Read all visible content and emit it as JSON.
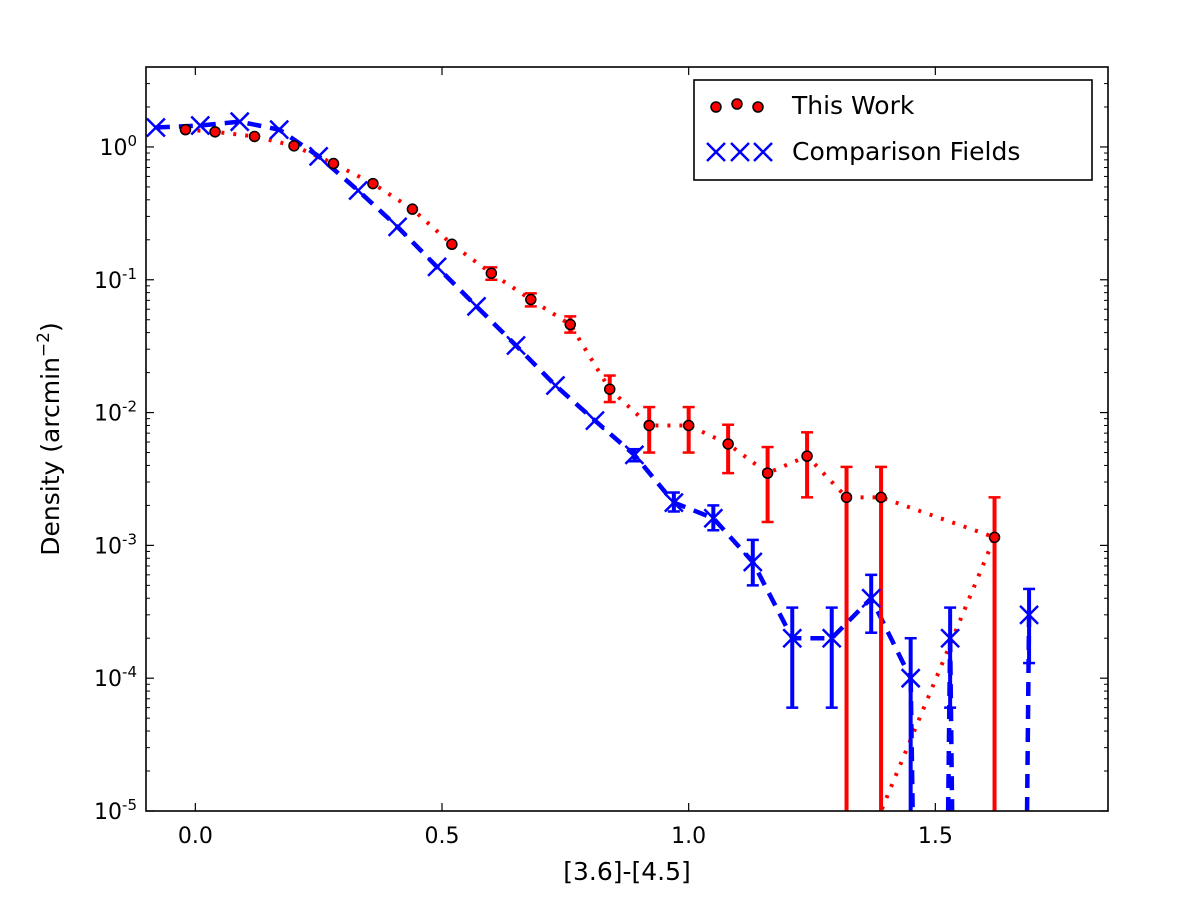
{
  "chart_data": {
    "type": "scatter",
    "xlabel": "[3.6]-[4.5]",
    "ylabel": "Density (arcmin",
    "ylabel_exp": "−2",
    "ylabel_close": ")",
    "xlim": [
      -0.1,
      1.85
    ],
    "ylim": [
      1e-05,
      4
    ],
    "yscale": "log",
    "x_ticks": [
      {
        "value": 0.0,
        "label": "0.0"
      },
      {
        "value": 0.5,
        "label": "0.5"
      },
      {
        "value": 1.0,
        "label": "1.0"
      },
      {
        "value": 1.5,
        "label": "1.5"
      }
    ],
    "y_ticks": [
      {
        "value": 1,
        "base": "10",
        "exp": "0"
      },
      {
        "value": 0.1,
        "base": "10",
        "exp": "-1"
      },
      {
        "value": 0.01,
        "base": "10",
        "exp": "-2"
      },
      {
        "value": 0.001,
        "base": "10",
        "exp": "-3"
      },
      {
        "value": 0.0001,
        "base": "10",
        "exp": "-4"
      },
      {
        "value": 1e-05,
        "base": "10",
        "exp": "-5"
      }
    ],
    "legend": {
      "position": "top-right"
    },
    "series": [
      {
        "name": "This Work",
        "color": "#ff0000",
        "marker": "dot",
        "linestyle": "dotted",
        "x": [
          -0.02,
          0.04,
          0.12,
          0.2,
          0.28,
          0.36,
          0.44,
          0.52,
          0.6,
          0.68,
          0.76,
          0.84,
          0.92,
          1.0,
          1.08,
          1.16,
          1.24,
          1.32,
          1.39,
          1.62
        ],
        "y": [
          1.35,
          1.3,
          1.2,
          1.02,
          0.75,
          0.53,
          0.34,
          0.185,
          0.112,
          0.071,
          0.046,
          0.015,
          0.008,
          0.008,
          0.0058,
          0.0035,
          0.0047,
          0.0023,
          0.0023,
          0.00115
        ],
        "err_low": [
          null,
          null,
          null,
          null,
          null,
          null,
          null,
          null,
          0.1,
          0.063,
          0.04,
          0.012,
          0.005,
          0.005,
          0.0035,
          0.0015,
          0.0023,
          1e-05,
          1e-05,
          1e-05
        ],
        "err_high": [
          null,
          null,
          null,
          null,
          null,
          null,
          null,
          null,
          0.124,
          0.079,
          0.053,
          0.019,
          0.011,
          0.011,
          0.0081,
          0.0055,
          0.0071,
          0.0039,
          0.0039,
          0.0023
        ],
        "line_tail": [
          [
            1.39,
            1e-05
          ]
        ]
      },
      {
        "name": "Comparison Fields",
        "color": "#0000ff",
        "marker": "x",
        "linestyle": "dashed",
        "x": [
          -0.08,
          0.01,
          0.09,
          0.17,
          0.25,
          0.33,
          0.41,
          0.49,
          0.57,
          0.65,
          0.73,
          0.81,
          0.89,
          0.97,
          1.05,
          1.13,
          1.21,
          1.29,
          1.37,
          1.45,
          1.53,
          1.69
        ],
        "y": [
          1.4,
          1.45,
          1.55,
          1.35,
          0.85,
          0.47,
          0.25,
          0.125,
          0.063,
          0.032,
          0.016,
          0.0087,
          0.0048,
          0.0021,
          0.0016,
          0.00075,
          0.0002,
          0.0002,
          0.0004,
          0.0001,
          0.0002,
          0.0003
        ],
        "err_low": [
          null,
          null,
          null,
          null,
          null,
          null,
          null,
          null,
          null,
          null,
          null,
          null,
          0.0043,
          0.0018,
          0.0013,
          0.0005,
          6e-05,
          6e-05,
          0.00022,
          1e-05,
          6e-05,
          0.00013
        ],
        "err_high": [
          null,
          null,
          null,
          null,
          null,
          null,
          null,
          null,
          null,
          null,
          null,
          null,
          0.0053,
          0.0025,
          0.002,
          0.0011,
          0.00034,
          0.00034,
          0.0006,
          0.0002,
          0.00034,
          0.00047
        ],
        "line_gaps": [
          [
            1.45,
            1.53
          ],
          [
            1.53,
            1.69
          ]
        ]
      }
    ]
  }
}
